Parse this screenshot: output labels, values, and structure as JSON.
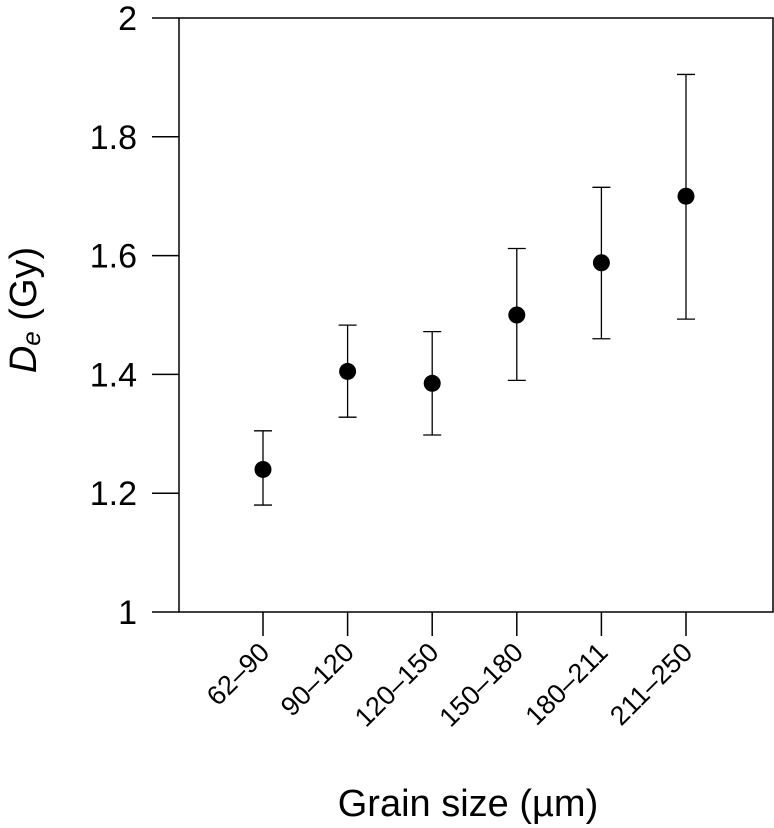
{
  "chart_data": {
    "type": "scatter",
    "title": "",
    "xlabel": "Grain size (µm)",
    "ylabel": {
      "main": "D",
      "subscript": "e",
      "unit": " (Gy)"
    },
    "categories": [
      "62–90",
      "90–120",
      "120–150",
      "150–180",
      "180–211",
      "211–250"
    ],
    "series": [
      {
        "values": [
          1.24,
          1.405,
          1.385,
          1.5,
          1.588,
          1.7
        ],
        "error_low": [
          1.18,
          1.328,
          1.298,
          1.39,
          1.46,
          1.493
        ],
        "error_high": [
          1.305,
          1.483,
          1.472,
          1.612,
          1.715,
          1.905
        ]
      }
    ],
    "ylim": [
      1,
      2
    ],
    "yticks": [
      1,
      1.2,
      1.4,
      1.6,
      1.8,
      2
    ],
    "ytick_labels": [
      "1",
      "1.2",
      "1.4",
      "1.6",
      "1.8",
      "2"
    ],
    "grid": false,
    "colors": {
      "marker": "#000000",
      "axis": "#000000",
      "background": "#ffffff"
    }
  }
}
